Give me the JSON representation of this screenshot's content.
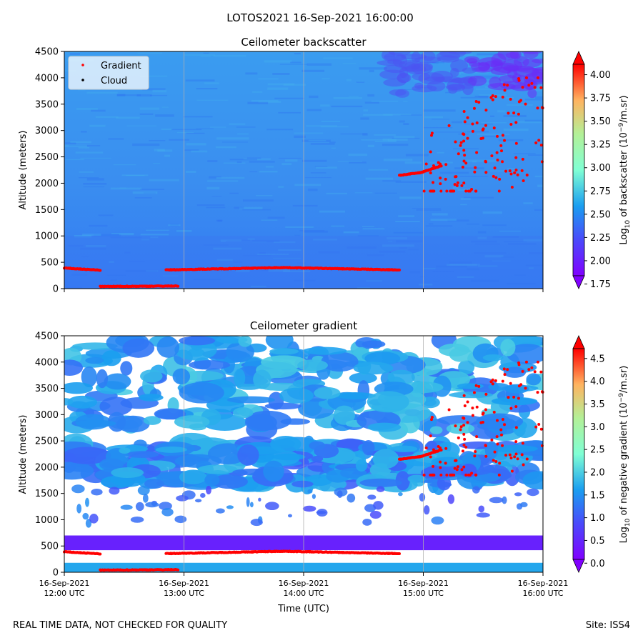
{
  "figure_title": "LOTOS2021 16-Sep-2021 16:00:00",
  "footer": {
    "left": "REAL TIME DATA, NOT CHECKED FOR QUALITY",
    "right": "Site: ISS4"
  },
  "colors": {
    "gradient_points": "#ff0000",
    "cloud_points": "#000000",
    "grid": "#b0b0b0"
  },
  "chart_data": [
    {
      "type": "heatmap",
      "title": "Ceilometer backscatter",
      "ylabel": "Altitude (meters)",
      "xlabel": "",
      "ylim": [
        0,
        4500
      ],
      "yticks": [
        0,
        500,
        1000,
        1500,
        2000,
        2500,
        3000,
        3500,
        4000,
        4500
      ],
      "xlim_hours_utc": [
        12.0,
        16.0
      ],
      "xticks": [
        "16-Sep-2021\n12:00 UTC",
        "16-Sep-2021\n13:00 UTC",
        "16-Sep-2021\n14:00 UTC",
        "16-Sep-2021\n15:00 UTC",
        "16-Sep-2021\n16:00 UTC"
      ],
      "xtick_labels_visible": false,
      "grid": "vertical",
      "legend": {
        "placement": "top-left",
        "entries": [
          {
            "label": "Gradient",
            "color": "#ff0000"
          },
          {
            "label": "Cloud",
            "color": "#000000"
          }
        ]
      },
      "colorbar": {
        "label": "Log10 of backscatter (10^-9/m.sr)",
        "label_main": "Log",
        "label_sub": "10",
        "label_mid": " of backscatter (10",
        "label_sup": "−9",
        "label_end": "/m.sr)",
        "range": [
          1.7,
          4.25
        ],
        "ticks": [
          "1.75",
          "2.00",
          "2.25",
          "2.50",
          "2.75",
          "3.00",
          "3.25",
          "3.50",
          "3.75",
          "4.00"
        ],
        "colormap": "rainbow"
      },
      "field_description_levels": {
        "background_low_altitude": 2.2,
        "background_high_altitude": 2.35,
        "upper_right_max": 1.9
      },
      "gradient_points": [
        {
          "segment": "pbl_top_early",
          "time_range": [
            12.0,
            12.3
          ],
          "altitude": [
            390,
            350
          ]
        },
        {
          "segment": "surface_layer",
          "time_range": [
            12.3,
            12.95
          ],
          "altitude": [
            40,
            50
          ]
        },
        {
          "segment": "pbl_top",
          "time_range": [
            12.85,
            14.8
          ],
          "altitude": [
            355,
            400,
            355
          ]
        },
        {
          "segment": "upper_layer",
          "time_range": [
            14.8,
            15.15
          ],
          "altitude": [
            2150,
            2200,
            2330
          ]
        },
        {
          "segment": "upper_scatter",
          "time_range": [
            15.0,
            16.0
          ],
          "altitude": [
            1850,
            4000
          ]
        }
      ]
    },
    {
      "type": "heatmap",
      "title": "Ceilometer gradient",
      "ylabel": "Altitude (meters)",
      "xlabel": "Time (UTC)",
      "ylim": [
        0,
        4500
      ],
      "yticks": [
        0,
        500,
        1000,
        1500,
        2000,
        2500,
        3000,
        3500,
        4000,
        4500
      ],
      "xlim_hours_utc": [
        12.0,
        16.0
      ],
      "xticks": [
        "16-Sep-2021\n12:00 UTC",
        "16-Sep-2021\n13:00 UTC",
        "16-Sep-2021\n14:00 UTC",
        "16-Sep-2021\n15:00 UTC",
        "16-Sep-2021\n16:00 UTC"
      ],
      "xtick_labels_visible": true,
      "grid": "vertical",
      "colorbar": {
        "label": "Log10 of negative gradient (10^-9/m.sr)",
        "label_main": "Log",
        "label_sub": "10",
        "label_mid": " of negative gradient (10",
        "label_sup": "−9",
        "label_end": "/m.sr)",
        "range": [
          -0.2,
          5.0
        ],
        "ticks": [
          "0.0",
          "0.5",
          "1.0",
          "1.5",
          "2.0",
          "2.5",
          "3.0",
          "3.5",
          "4.0",
          "4.5"
        ],
        "colormap": "rainbow"
      },
      "layers": [
        {
          "altitude_range": [
            2700,
            4450
          ],
          "level": 1.5,
          "coverage": "patchy"
        },
        {
          "altitude_range": [
            1650,
            2450
          ],
          "level": 1.3,
          "coverage": "patchy"
        },
        {
          "altitude_range": [
            420,
            700
          ],
          "level": 0.2,
          "coverage": "continuous"
        },
        {
          "altitude_range": [
            0,
            180
          ],
          "level": 1.6,
          "coverage": "continuous"
        }
      ]
    }
  ]
}
